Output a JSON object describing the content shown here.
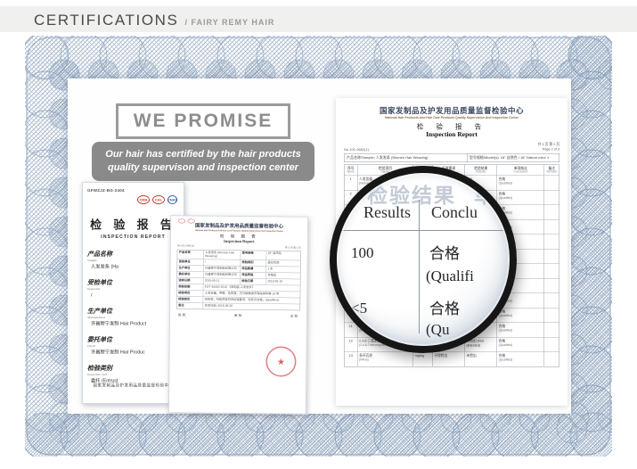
{
  "page_header": {
    "title": "CERTIFICATIONS",
    "subtitle": "/ FAIRY REMY HAIR"
  },
  "promise": {
    "heading": "WE PROMISE",
    "text": "Our hair has certified by the hair products quality supervison and inspection center"
  },
  "colors": {
    "frame_line": "#8ea3bd",
    "frame_light": "#aebcce",
    "seal_red": "#c23b2d",
    "stamp_red": "#cd3c37",
    "promise_gray": "#8a8a8a"
  },
  "cert_small": {
    "doc_code": "GFWZJZ-BG-2404",
    "seals": [
      "CMA",
      "CAL",
      "CNAS"
    ],
    "title_cn": "检 验 报 告",
    "title_en": "INSPECTION REPORT",
    "fields": [
      {
        "label_cn": "产品名称",
        "label_en": "Sample",
        "value": "人发发条 (Ha"
      },
      {
        "label_cn": "受检单位",
        "label_en": "Inspected",
        "value": "/"
      },
      {
        "label_cn": "生产单位",
        "label_en": "Manufacturer",
        "value": "许昌穆宁发制 Hair Product"
      },
      {
        "label_cn": "委托单位",
        "label_en": "Client",
        "value": "许昌穆宁发制 Hair Produc"
      },
      {
        "label_cn": "检验类别",
        "label_en": "Inspection Sort",
        "value": "委托 (Entrust"
      }
    ],
    "footer": "国家发制品及护发用品质量监督检验中心"
  },
  "cert_mid": {
    "center_cn": "国家发制品及护发用品质量监督检验中心",
    "center_en": "National Hair Products And Hair Care Products Quality Supervision And Inspection Center",
    "title_cn": "检 验 报 告",
    "title_en": "Inspection Report",
    "no": "No.101-0682(1)",
    "page": "共 3 页 第 1 页",
    "rows": [
      {
        "l1": "产品名称",
        "v1": "人发发条 (Women Hair Weaving)",
        "l2": "型号规格",
        "v2": "18\" 自然色"
      },
      {
        "l1": "受检单位",
        "v1": "/",
        "l2": "检验类别",
        "v2": "委托检验"
      },
      {
        "l1": "生产单位",
        "v1": "许昌穆宁发制品有限公司",
        "l2": "样品数量",
        "v2": "1 条"
      },
      {
        "l1": "委托单位",
        "v1": "许昌穆宁发制品有限公司",
        "l2": "样品等级",
        "v2": "合格品"
      },
      {
        "l1": "送样日期",
        "v1": "2015-05-11",
        "l2": "检验日期",
        "v2": "2015-05-18"
      },
      {
        "l1": "检验依据",
        "wide": "FZ/T 82002-2015 《发制品 人发发条》"
      },
      {
        "l1": "检验项目",
        "wide": "人发含量、甲醛、色牢度、可分解致癌芳香胺染料等 13 项"
      },
      {
        "l1": "检验结论",
        "wide": "经检验，所检项目符合标准要求，判定为合格。(Qualified)"
      },
      {
        "l1": "备注",
        "wide": "签发日期: 2015-05-20"
      }
    ],
    "sign_approve": "批 准:",
    "sign_check": "审 核:",
    "sign_test": "主 检:"
  },
  "report": {
    "center_cn": "国家发制品及护发用品质量监督检验中心",
    "center_en": "National Hair Products And Hair Care Products Quality Supervision And Inspection Center",
    "title_cn": "检 验 报 告",
    "title_en": "Inspection Report",
    "no": "No.101-0682(1)",
    "page_cn": "共 3 页 第 2 页",
    "page_en": "Page 2 of 3",
    "sample_label": "产品名称/Sample:",
    "sample_value": "人发发条 (Women Hair Weaving)",
    "model_label": "型号规格/Model(s):",
    "model_value": "18\" 自然色 / 18\" Nature color 1",
    "columns": [
      {
        "cn": "序号",
        "en": "Items"
      },
      {
        "cn": "检验项目",
        "en": "Name"
      },
      {
        "cn": "计量单位",
        "en": "Unit"
      },
      {
        "cn": "标准要求",
        "en": "Require"
      },
      {
        "cn": "检验结果",
        "en": "Results"
      },
      {
        "cn": "单项结论",
        "en": "Conclusion"
      },
      {
        "cn": "备注",
        "en": "Remark"
      }
    ],
    "rows": [
      {
        "no": "1",
        "cn": "人发含量",
        "en": "(Human hair content)",
        "unit": "%",
        "req": "≥ 95",
        "res": "100",
        "con_cn": "合格",
        "con_en": "(Qualified)",
        "remark": ""
      },
      {
        "no": "2",
        "cn": "甲醛",
        "en": "(Formaldehyde)",
        "unit": "mg/kg",
        "req": "≤ 75",
        "res": "<5",
        "con_cn": "合格",
        "con_en": "(Qualified)",
        "remark": ""
      },
      {
        "no": "3",
        "cn": "pH 值",
        "en": "(pH value)",
        "unit": "—",
        "req": "4.0~9.0",
        "res": "6.5",
        "con_cn": "合格",
        "con_en": "(Qualified)",
        "remark": ""
      },
      {
        "no": "4",
        "cn": "耐水色牢度",
        "en": "(Color fastness to water)",
        "unit": "级",
        "req": "≥ 3",
        "res": "4",
        "con_cn": "合格",
        "con_en": "(Qualified)",
        "remark": ""
      },
      {
        "no": "5",
        "cn": "耐汗渍色牢度",
        "en": "(Fastness to perspiration)",
        "unit": "级",
        "req": "≥ 3",
        "res": "4",
        "con_cn": "合格",
        "con_en": "(Qualified)",
        "remark": ""
      },
      {
        "no": "6",
        "cn": "耐摩擦色牢度",
        "en": "(Fastness to rubbing)",
        "unit": "级",
        "req": "≥ 3",
        "res": "4",
        "con_cn": "合格",
        "con_en": "(Qualified)",
        "remark": ""
      },
      {
        "no": "7",
        "cn": "铅 (Pb)",
        "en": "(Lead)",
        "unit": "mg/kg",
        "req": "不得检出",
        "res": "未检出",
        "con_cn": "合格",
        "con_en": "(Qualified)",
        "remark": ""
      },
      {
        "no": "8",
        "cn": "砷 (As)",
        "en": "(Arsenic)",
        "unit": "mg/kg",
        "req": "不得检出",
        "res": "未检出",
        "con_cn": "合格",
        "con_en": "(Qualified)",
        "remark": ""
      },
      {
        "no": "9",
        "cn": "镉 (Cd)",
        "en": "(Cadmium)",
        "unit": "mg/kg",
        "req": "不得检出",
        "res": "未检出",
        "con_cn": "合格",
        "con_en": "(Qualified)",
        "remark": ""
      },
      {
        "no": "10",
        "cn": "4-氨基偶氮苯",
        "en": "(4-aminoazobenzene)",
        "unit": "mg/kg",
        "req": "不得检出 (Not be detected)",
        "res": "未检出 (Not detected)",
        "con_cn": "合格",
        "con_en": "(Qualified)",
        "remark": ""
      },
      {
        "no": "11",
        "cn": "可迁移元素",
        "en": "(Migratable elements)",
        "unit": "mg/kg",
        "req": "不得检出 (Not be detected)",
        "res": "未检出 (Not detected)",
        "con_cn": "合格",
        "con_en": "(Qualified)",
        "remark": ""
      },
      {
        "no": "12",
        "cn": "2,4,6-三氯苯酚",
        "en": "(2,4,6-Trichlorophenol)",
        "unit": "mg/kg",
        "req": "不得检出 (Not be detected)",
        "res": "未检出 (Not detected)",
        "con_cn": "合格",
        "con_en": "(Qualified)",
        "remark": ""
      },
      {
        "no": "13",
        "cn": "多环芳烃",
        "en": "(PAHs)",
        "unit": "mg/kg",
        "req": "不得检出",
        "res": "未检出",
        "con_cn": "合格",
        "con_en": "(Qualified)",
        "remark": ""
      }
    ]
  },
  "magnifier": {
    "faint_header_cn": "检验结果",
    "faint_col2_cn": "单",
    "col1_header_en": "Results",
    "col2_header_en": "Conclu",
    "rows": [
      {
        "result": "100",
        "con_cn": "合格",
        "con_en": "(Qualifi"
      },
      {
        "result": "<5",
        "con_cn": "合格",
        "con_en": "(Qu"
      }
    ]
  }
}
